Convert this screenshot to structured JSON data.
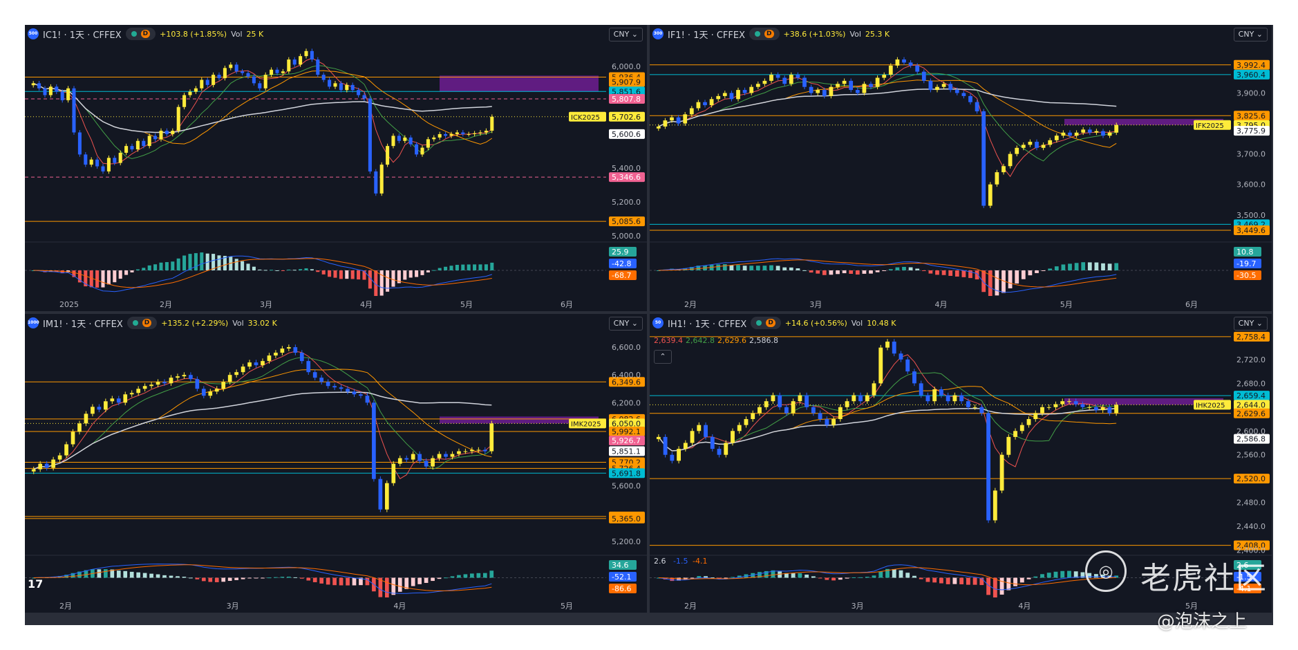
{
  "colors": {
    "bg": "#131722",
    "up": "#ffeb3b",
    "down": "#2962ff",
    "grid": "#1e222d",
    "text": "#b2b5be",
    "orange": "#ff9800",
    "cyan": "#00bcd4",
    "pink": "#f06292",
    "red_ma": "#ef5350",
    "green_ma": "#43a047",
    "white_ma": "#d1d4dc",
    "purple_zone": "#7b1fa2"
  },
  "watermark": {
    "icon": "tiger-logo-icon",
    "text": "老虎社区",
    "author": "@泡沫之上"
  },
  "panels": [
    {
      "id": "ic",
      "header": {
        "badge": "500",
        "title": "IC1! · 1天 · CFFEX",
        "change": "+103.8 (+1.85%)",
        "vol_label": "Vol",
        "vol": "25 K",
        "currency": "CNY"
      },
      "chart_data": {
        "type": "candlestick",
        "symbol": "IC1!",
        "interval": "1天",
        "exchange": "CFFEX",
        "x_ticks": [
          "2025",
          "2月",
          "3月",
          "4月",
          "5月",
          "6月"
        ],
        "y_ticks": [
          "6,000.0",
          "5,400.0",
          "5,200.0",
          "5,000.0"
        ],
        "ylim": [
          4980,
          6130
        ],
        "price_labels": [
          {
            "text": "5,936.4",
            "value": 5936.4,
            "color": "#ff9800",
            "line": "solid"
          },
          {
            "text": "5,907.9",
            "value": 5907.9,
            "color": "#ff9800",
            "line": "none"
          },
          {
            "text": "5,851.6",
            "value": 5851.6,
            "color": "#00bcd4",
            "line": "solid"
          },
          {
            "text": "5,807.8",
            "value": 5807.8,
            "color": "#f06292",
            "line": "dashed"
          },
          {
            "text": "5,702.6",
            "value": 5702.6,
            "color": "#ffeb3b",
            "line": "dotted"
          },
          {
            "text": "5,600.6",
            "value": 5600.6,
            "color": "#ffffff",
            "line": "none"
          },
          {
            "text": "5,346.6",
            "value": 5346.6,
            "color": "#f06292",
            "line": "dashed"
          },
          {
            "text": "5,085.6",
            "value": 5085.6,
            "color": "#ff9800",
            "line": "solid"
          }
        ],
        "contract_tag": "ICK2025",
        "zone": {
          "from": 5850,
          "to": 5945
        },
        "closes": [
          5900,
          5870,
          5830,
          5880,
          5850,
          5800,
          5870,
          5610,
          5480,
          5420,
          5450,
          5410,
          5380,
          5460,
          5430,
          5490,
          5530,
          5510,
          5560,
          5530,
          5590,
          5570,
          5620,
          5600,
          5620,
          5760,
          5830,
          5850,
          5870,
          5920,
          5890,
          5950,
          5930,
          5990,
          6010,
          5970,
          5960,
          5940,
          5900,
          5870,
          5950,
          5980,
          5960,
          5970,
          6040,
          6010,
          6060,
          6090,
          6040,
          5950,
          5920,
          5880,
          5900,
          5860,
          5890,
          5860,
          5830,
          5810,
          5380,
          5250,
          5420,
          5530,
          5590,
          5560,
          5580,
          5540,
          5480,
          5520,
          5570,
          5580,
          5600,
          5590,
          5600,
          5610,
          5600,
          5600,
          5605,
          5610,
          5620,
          5702.6
        ],
        "macd": {
          "hist_label": "25.9",
          "dif_label": "-42.8",
          "dea_label": "-68.7"
        }
      }
    },
    {
      "id": "if",
      "header": {
        "badge": "300",
        "title": "IF1! · 1天 · CFFEX",
        "change": "+38.6 (+1.03%)",
        "vol_label": "Vol",
        "vol": "25.3 K",
        "currency": "CNY"
      },
      "chart_data": {
        "type": "candlestick",
        "symbol": "IF1!",
        "interval": "1天",
        "exchange": "CFFEX",
        "x_ticks": [
          "2月",
          "3月",
          "4月",
          "5月",
          "6月"
        ],
        "y_ticks": [
          "3,900.0",
          "3,700.0",
          "3,600.0",
          "3,500.0"
        ],
        "ylim": [
          3420,
          4060
        ],
        "price_labels": [
          {
            "text": "3,992.4",
            "value": 3992.4,
            "color": "#ff9800",
            "line": "solid"
          },
          {
            "text": "3,960.4",
            "value": 3960.4,
            "color": "#00bcd4",
            "line": "solid"
          },
          {
            "text": "3,825.6",
            "value": 3825.6,
            "color": "#ff9800",
            "line": "solid"
          },
          {
            "text": "3,795.0",
            "value": 3795.0,
            "color": "#ffeb3b",
            "line": "dotted"
          },
          {
            "text": "3,775.9",
            "value": 3775.9,
            "color": "#ffffff",
            "line": "none"
          },
          {
            "text": "3,469.2",
            "value": 3469.2,
            "color": "#00bcd4",
            "line": "solid"
          },
          {
            "text": "3,449.6",
            "value": 3449.6,
            "color": "#ff9800",
            "line": "solid"
          }
        ],
        "contract_tag": "IFK2025",
        "zone": {
          "from": 3795,
          "to": 3815
        },
        "closes": [
          3790,
          3810,
          3820,
          3800,
          3830,
          3850,
          3870,
          3860,
          3880,
          3890,
          3900,
          3880,
          3910,
          3900,
          3920,
          3930,
          3940,
          3960,
          3950,
          3930,
          3960,
          3950,
          3920,
          3900,
          3910,
          3890,
          3920,
          3930,
          3940,
          3910,
          3900,
          3930,
          3920,
          3950,
          3960,
          3990,
          4010,
          4000,
          3990,
          3970,
          3940,
          3910,
          3920,
          3930,
          3910,
          3900,
          3890,
          3870,
          3840,
          3530,
          3600,
          3640,
          3660,
          3700,
          3720,
          3730,
          3740,
          3720,
          3730,
          3745,
          3760,
          3770,
          3760,
          3770,
          3780,
          3770,
          3775,
          3760,
          3770,
          3795
        ],
        "macd": {
          "hist_label": "10.8",
          "dif_label": "-19.7",
          "dea_label": "-30.5"
        }
      }
    },
    {
      "id": "im",
      "header": {
        "badge": "1000",
        "title": "IM1! · 1天 · CFFEX",
        "change": "+135.2 (+2.29%)",
        "vol_label": "Vol",
        "vol": "33.02 K",
        "currency": "CNY"
      },
      "chart_data": {
        "type": "candlestick",
        "symbol": "IM1!",
        "interval": "1天",
        "exchange": "CFFEX",
        "x_ticks": [
          "2月",
          "3月",
          "4月",
          "5月"
        ],
        "y_ticks": [
          "6,600.0",
          "6,400.0",
          "6,200.0",
          "5,600.0",
          "5,200.0"
        ],
        "ylim": [
          5120,
          6700
        ],
        "price_labels": [
          {
            "text": "6,349.6",
            "value": 6349.6,
            "color": "#ff9800",
            "line": "solid"
          },
          {
            "text": "6,082.6",
            "value": 6082.6,
            "color": "#ff9800",
            "line": "solid"
          },
          {
            "text": "6,050.0",
            "value": 6050.0,
            "color": "#ffeb3b",
            "line": "dotted"
          },
          {
            "text": "5,992.1",
            "value": 5992.1,
            "color": "#ff9800",
            "line": "solid"
          },
          {
            "text": "5,926.7",
            "value": 5926.7,
            "color": "#f06292",
            "line": "none"
          },
          {
            "text": "5,851.1",
            "value": 5851.1,
            "color": "#ffffff",
            "line": "none"
          },
          {
            "text": "5,770.2",
            "value": 5770.2,
            "color": "#ff9800",
            "line": "solid"
          },
          {
            "text": "5,726.4",
            "value": 5726.4,
            "color": "#ff9800",
            "line": "solid"
          },
          {
            "text": "5,691.8",
            "value": 5691.8,
            "color": "#00bcd4",
            "line": "solid"
          },
          {
            "text": "5,380.0",
            "value": 5380.0,
            "color": "#ff9800",
            "line": "solid"
          },
          {
            "text": "5,365.0",
            "value": 5365.0,
            "color": "#ff9800",
            "line": "solid"
          }
        ],
        "contract_tag": "IMK2025",
        "zone": {
          "from": 6050,
          "to": 6100
        },
        "closes": [
          5720,
          5760,
          5730,
          5790,
          5820,
          5900,
          5990,
          6050,
          6120,
          6170,
          6150,
          6210,
          6230,
          6200,
          6260,
          6270,
          6300,
          6320,
          6330,
          6350,
          6340,
          6380,
          6390,
          6400,
          6370,
          6300,
          6250,
          6280,
          6300,
          6350,
          6400,
          6420,
          6460,
          6490,
          6470,
          6500,
          6540,
          6560,
          6590,
          6600,
          6560,
          6500,
          6420,
          6380,
          6350,
          6320,
          6310,
          6300,
          6280,
          6260,
          6250,
          6200,
          5650,
          5430,
          5620,
          5760,
          5800,
          5790,
          5830,
          5780,
          5740,
          5800,
          5830,
          5810,
          5830,
          5850,
          5850,
          5860,
          5860,
          5850,
          6050
        ],
        "macd": {
          "hist_label": "34.6",
          "dif_label": "-52.1",
          "dea_label": "-86.6"
        }
      }
    },
    {
      "id": "ih",
      "header": {
        "badge": "50",
        "title": "IH1! · 1天 · CFFEX",
        "change": "+14.6 (+0.56%)",
        "vol_label": "Vol",
        "vol": "10.48 K",
        "currency": "CNY"
      },
      "ma_values": [
        {
          "text": "2,639.4",
          "color": "#ef5350"
        },
        {
          "text": "2,642.8",
          "color": "#43a047"
        },
        {
          "text": "2,629.6",
          "color": "#ff9800"
        },
        {
          "text": "2,586.8",
          "color": "#d1d4dc"
        }
      ],
      "chart_data": {
        "type": "candlestick",
        "symbol": "IH1!",
        "interval": "1天",
        "exchange": "CFFEX",
        "x_ticks": [
          "2月",
          "3月",
          "4月",
          "5月"
        ],
        "y_ticks": [
          "2,720.0",
          "2,680.0",
          "2,600.0",
          "2,560.0",
          "2,480.0",
          "2,440.0",
          "2,400.0"
        ],
        "ylim": [
          2396,
          2764
        ],
        "price_labels": [
          {
            "text": "2,758.4",
            "value": 2758.4,
            "color": "#ff9800",
            "line": "solid"
          },
          {
            "text": "2,659.4",
            "value": 2659.4,
            "color": "#00bcd4",
            "line": "solid"
          },
          {
            "text": "2,644.0",
            "value": 2644.0,
            "color": "#ffeb3b",
            "line": "dotted"
          },
          {
            "text": "2,629.6",
            "value": 2629.6,
            "color": "#ff9800",
            "line": "solid"
          },
          {
            "text": "2,586.8",
            "value": 2586.8,
            "color": "#ffffff",
            "line": "none"
          },
          {
            "text": "2,520.0",
            "value": 2520.0,
            "color": "#ff9800",
            "line": "solid"
          },
          {
            "text": "2,408.0",
            "value": 2408.0,
            "color": "#ff9800",
            "line": "solid"
          }
        ],
        "contract_tag": "IHK2025",
        "zone": {
          "from": 2644,
          "to": 2655
        },
        "closes": [
          2590,
          2560,
          2550,
          2570,
          2580,
          2600,
          2610,
          2590,
          2570,
          2560,
          2580,
          2600,
          2610,
          2620,
          2630,
          2640,
          2650,
          2660,
          2640,
          2630,
          2650,
          2660,
          2640,
          2630,
          2620,
          2610,
          2620,
          2640,
          2650,
          2660,
          2650,
          2660,
          2680,
          2740,
          2750,
          2730,
          2720,
          2700,
          2680,
          2660,
          2650,
          2670,
          2660,
          2650,
          2660,
          2650,
          2640,
          2640,
          2630,
          2450,
          2500,
          2560,
          2590,
          2600,
          2610,
          2620,
          2630,
          2640,
          2640,
          2645,
          2650,
          2650,
          2645,
          2640,
          2640,
          2635,
          2640,
          2630,
          2644
        ],
        "macd": {
          "hist_label": "2.6",
          "dif_label": "-1.5",
          "dea_label": "-4.1"
        }
      }
    }
  ]
}
